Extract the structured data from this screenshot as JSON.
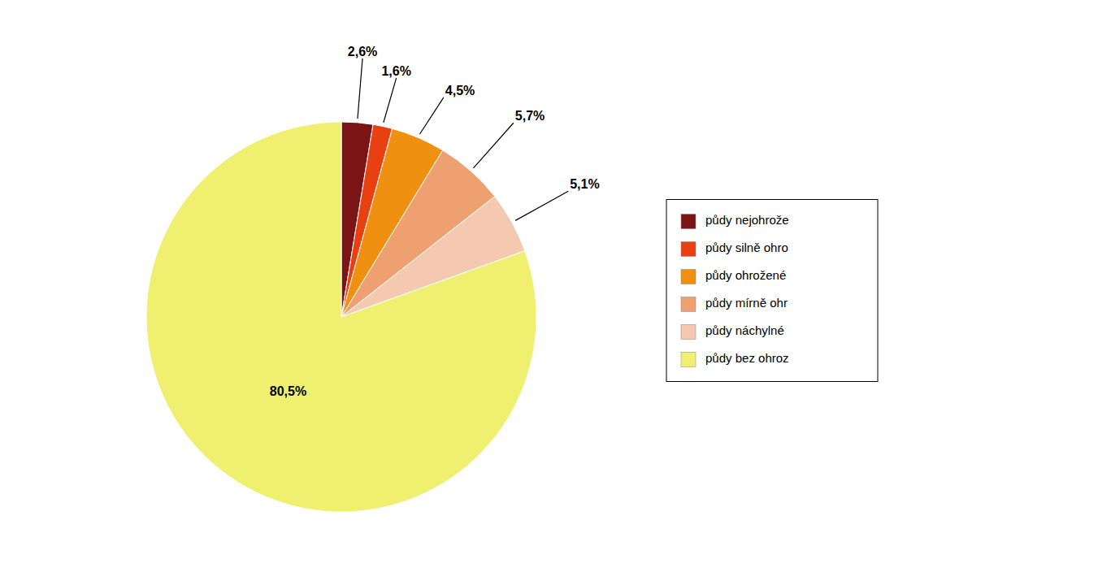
{
  "chart_data": {
    "type": "pie",
    "categories": [
      "půdy nejohrože",
      "půdy silně ohro",
      "půdy ohrožené",
      "půdy mírně ohr",
      "půdy náchylné",
      "půdy bez ohroz"
    ],
    "values": [
      2.6,
      1.6,
      4.5,
      5.7,
      5.1,
      80.5
    ],
    "value_labels": [
      "2,6%",
      "1,6%",
      "4,5%",
      "5,7%",
      "5,1%",
      "80,5%"
    ],
    "colors": [
      "#7B1515",
      "#E84010",
      "#F09010",
      "#EFA070",
      "#F5C8B0",
      "#F0F070"
    ],
    "data_labels": true,
    "legend": "right"
  }
}
